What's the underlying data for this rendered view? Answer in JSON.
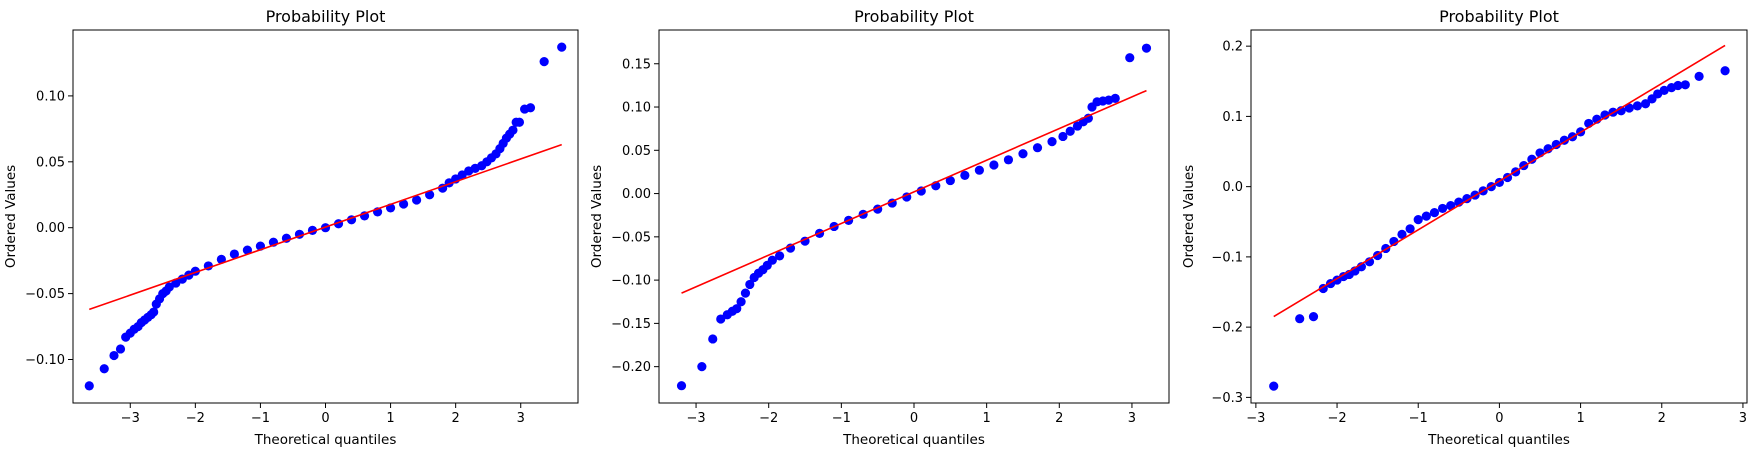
{
  "colors": {
    "points": "#0000ff",
    "fit_line": "#ff0000",
    "axes": "#000000",
    "background": "#ffffff"
  },
  "chart_data": [
    {
      "type": "scatter",
      "title": "Probability Plot",
      "xlabel": "Theoretical quantiles",
      "ylabel": "Ordered Values",
      "xlim": [
        -3.88,
        3.88
      ],
      "ylim": [
        -0.133,
        0.15
      ],
      "xticks": [
        -3,
        -2,
        -1,
        0,
        1,
        2,
        3
      ],
      "yticks": [
        -0.1,
        -0.05,
        0.0,
        0.05,
        0.1
      ],
      "ytick_labels": [
        "−0.10",
        "−0.05",
        "0.00",
        "0.05",
        "0.10"
      ],
      "xtick_labels": [
        "−3",
        "−2",
        "−1",
        "0",
        "1",
        "2",
        "3"
      ],
      "grid": false,
      "fit_line": {
        "x": [
          -3.63,
          3.63
        ],
        "y": [
          -0.062,
          0.063
        ]
      },
      "series": [
        {
          "x": [
            -3.63,
            -3.4,
            -3.25,
            -3.15,
            -3.07,
            -3.0,
            -2.94,
            -2.88,
            -2.83,
            -2.78,
            -2.73,
            -2.68,
            -2.64,
            -2.6,
            -2.55,
            -2.5,
            -2.45,
            -2.4,
            -2.3,
            -2.2,
            -2.1,
            -2.0,
            -1.8,
            -1.6,
            -1.4,
            -1.2,
            -1.0,
            -0.8,
            -0.6,
            -0.4,
            -0.2,
            0.0,
            0.2,
            0.4,
            0.6,
            0.8,
            1.0,
            1.2,
            1.4,
            1.6,
            1.8,
            1.9,
            2.0,
            2.1,
            2.2,
            2.3,
            2.4,
            2.48,
            2.55,
            2.62,
            2.68,
            2.73,
            2.78,
            2.83,
            2.88,
            2.93,
            2.98,
            3.06,
            3.15,
            3.36,
            3.63
          ],
          "y": [
            -0.12,
            -0.107,
            -0.097,
            -0.092,
            -0.083,
            -0.08,
            -0.077,
            -0.075,
            -0.072,
            -0.07,
            -0.068,
            -0.066,
            -0.064,
            -0.058,
            -0.054,
            -0.05,
            -0.048,
            -0.045,
            -0.042,
            -0.039,
            -0.036,
            -0.033,
            -0.029,
            -0.024,
            -0.02,
            -0.017,
            -0.014,
            -0.011,
            -0.008,
            -0.005,
            -0.002,
            0.0,
            0.003,
            0.006,
            0.009,
            0.012,
            0.015,
            0.018,
            0.021,
            0.025,
            0.03,
            0.034,
            0.037,
            0.04,
            0.043,
            0.045,
            0.047,
            0.05,
            0.053,
            0.056,
            0.06,
            0.064,
            0.068,
            0.071,
            0.074,
            0.08,
            0.08,
            0.09,
            0.091,
            0.126,
            0.137
          ]
        }
      ]
    },
    {
      "type": "scatter",
      "title": "Probability Plot",
      "xlabel": "Theoretical quantiles",
      "ylabel": "Ordered Values",
      "xlim": [
        -3.51,
        3.51
      ],
      "ylim": [
        -0.242,
        0.189
      ],
      "xticks": [
        -3,
        -2,
        -1,
        0,
        1,
        2,
        3
      ],
      "yticks": [
        -0.2,
        -0.15,
        -0.1,
        -0.05,
        0.0,
        0.05,
        0.1,
        0.15
      ],
      "ytick_labels": [
        "−0.20",
        "−0.15",
        "−0.10",
        "−0.05",
        "0.00",
        "0.05",
        "0.10",
        "0.15"
      ],
      "xtick_labels": [
        "−3",
        "−2",
        "−1",
        "0",
        "1",
        "2",
        "3"
      ],
      "grid": false,
      "fit_line": {
        "x": [
          -3.2,
          3.2
        ],
        "y": [
          -0.115,
          0.119
        ]
      },
      "series": [
        {
          "x": [
            -3.2,
            -2.92,
            -2.77,
            -2.66,
            -2.57,
            -2.5,
            -2.44,
            -2.38,
            -2.32,
            -2.26,
            -2.2,
            -2.14,
            -2.08,
            -2.02,
            -1.95,
            -1.85,
            -1.7,
            -1.5,
            -1.3,
            -1.1,
            -0.9,
            -0.7,
            -0.5,
            -0.3,
            -0.1,
            0.1,
            0.3,
            0.5,
            0.7,
            0.9,
            1.1,
            1.3,
            1.5,
            1.7,
            1.9,
            2.05,
            2.15,
            2.25,
            2.33,
            2.4,
            2.45,
            2.52,
            2.6,
            2.68,
            2.77,
            2.97,
            3.2
          ],
          "y": [
            -0.222,
            -0.2,
            -0.168,
            -0.145,
            -0.14,
            -0.136,
            -0.133,
            -0.125,
            -0.115,
            -0.105,
            -0.097,
            -0.092,
            -0.088,
            -0.083,
            -0.077,
            -0.072,
            -0.063,
            -0.055,
            -0.046,
            -0.038,
            -0.031,
            -0.024,
            -0.018,
            -0.011,
            -0.004,
            0.003,
            0.009,
            0.015,
            0.021,
            0.027,
            0.033,
            0.039,
            0.046,
            0.053,
            0.06,
            0.066,
            0.072,
            0.078,
            0.083,
            0.087,
            0.1,
            0.106,
            0.107,
            0.108,
            0.11,
            0.157,
            0.168
          ]
        }
      ]
    },
    {
      "type": "scatter",
      "title": "Probability Plot",
      "xlabel": "Theoretical quantiles",
      "ylabel": "Ordered Values",
      "xlim": [
        -3.06,
        3.05
      ],
      "ylim": [
        -0.308,
        0.223
      ],
      "xticks": [
        -3,
        -2,
        -1,
        0,
        1,
        2,
        3
      ],
      "yticks": [
        -0.3,
        -0.2,
        -0.1,
        0.0,
        0.1,
        0.2
      ],
      "ytick_labels": [
        "−0.3",
        "−0.2",
        "−0.1",
        "0.0",
        "0.1",
        "0.2"
      ],
      "xtick_labels": [
        "−3",
        "−2",
        "−1",
        "0",
        "1",
        "2",
        "3"
      ],
      "grid": false,
      "fit_line": {
        "x": [
          -2.78,
          2.78
        ],
        "y": [
          -0.185,
          0.201
        ]
      },
      "series": [
        {
          "x": [
            -2.78,
            -2.46,
            -2.29,
            -2.17,
            -2.08,
            -2.0,
            -1.92,
            -1.85,
            -1.78,
            -1.7,
            -1.6,
            -1.5,
            -1.4,
            -1.3,
            -1.2,
            -1.1,
            -1.0,
            -0.9,
            -0.8,
            -0.7,
            -0.6,
            -0.5,
            -0.4,
            -0.3,
            -0.2,
            -0.1,
            0.0,
            0.1,
            0.2,
            0.3,
            0.4,
            0.5,
            0.6,
            0.7,
            0.8,
            0.9,
            1.0,
            1.1,
            1.2,
            1.3,
            1.4,
            1.5,
            1.6,
            1.7,
            1.8,
            1.88,
            1.95,
            2.03,
            2.12,
            2.2,
            2.29,
            2.46,
            2.78
          ],
          "y": [
            -0.284,
            -0.188,
            -0.185,
            -0.145,
            -0.138,
            -0.133,
            -0.128,
            -0.125,
            -0.12,
            -0.114,
            -0.107,
            -0.098,
            -0.088,
            -0.078,
            -0.068,
            -0.06,
            -0.047,
            -0.042,
            -0.037,
            -0.031,
            -0.027,
            -0.022,
            -0.017,
            -0.012,
            -0.006,
            0.0,
            0.006,
            0.013,
            0.021,
            0.03,
            0.039,
            0.048,
            0.054,
            0.06,
            0.066,
            0.071,
            0.078,
            0.09,
            0.096,
            0.102,
            0.106,
            0.108,
            0.112,
            0.115,
            0.118,
            0.125,
            0.132,
            0.137,
            0.141,
            0.144,
            0.145,
            0.157,
            0.165
          ]
        }
      ]
    }
  ]
}
